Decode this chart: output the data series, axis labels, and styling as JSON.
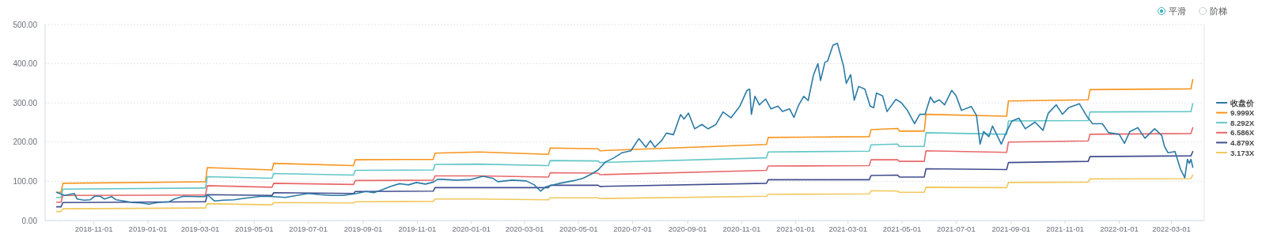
{
  "chart_data": {
    "type": "line",
    "xlim": [
      "2018-09-07",
      "2022-04-07"
    ],
    "xticks": [
      "2018-11-01",
      "2019-01-01",
      "2019-03-01",
      "2019-05-01",
      "2019-07-01",
      "2019-09-01",
      "2019-11-01",
      "2020-01-01",
      "2020-03-01",
      "2020-05-01",
      "2020-07-01",
      "2020-09-01",
      "2020-11-01",
      "2021-01-01",
      "2021-03-01",
      "2021-05-01",
      "2021-07-01",
      "2021-09-01",
      "2021-11-01",
      "2022-01-01",
      "2022-03-01"
    ],
    "ylim": [
      0,
      500
    ],
    "yticks": [
      {
        "value": 0,
        "label": "0.00"
      },
      {
        "value": 100,
        "label": "100.00"
      },
      {
        "value": 200,
        "label": "200.00"
      },
      {
        "value": 300,
        "label": "300.00"
      },
      {
        "value": 400,
        "label": "400.00"
      },
      {
        "value": 500,
        "label": "500.00"
      }
    ],
    "grid": "y",
    "legend": "right",
    "annotations": [
      "平滑",
      "阶梯"
    ],
    "series": [
      {
        "name": "收盘价",
        "color": "#2b7ba6",
        "x": [
          "2018-09-20",
          "2018-09-29",
          "2018-10-10",
          "2018-10-13",
          "2018-10-21",
          "2018-10-28",
          "2018-11-02",
          "2018-11-08",
          "2018-11-13",
          "2018-11-21",
          "2018-11-26",
          "2018-12-05",
          "2018-12-15",
          "2018-12-24",
          "2019-01-02",
          "2019-01-12",
          "2019-01-25",
          "2019-01-31",
          "2019-02-10",
          "2019-02-26",
          "2019-03-06",
          "2019-03-09",
          "2019-03-17",
          "2019-03-27",
          "2019-04-08",
          "2019-04-24",
          "2019-05-10",
          "2019-05-23",
          "2019-06-05",
          "2019-06-18",
          "2019-07-01",
          "2019-07-14",
          "2019-07-27",
          "2019-08-09",
          "2019-08-22",
          "2019-09-04",
          "2019-09-13",
          "2019-09-23",
          "2019-10-02",
          "2019-10-12",
          "2019-10-22",
          "2019-10-31",
          "2019-11-10",
          "2019-11-19",
          "2019-11-24",
          "2019-11-28",
          "2019-12-14",
          "2019-12-30",
          "2020-01-14",
          "2020-01-25",
          "2020-01-31",
          "2020-02-16",
          "2020-03-03",
          "2020-03-12",
          "2020-03-19",
          "2020-03-25",
          "2020-04-10",
          "2020-04-26",
          "2020-05-06",
          "2020-05-15",
          "2020-05-23",
          "2020-05-31",
          "2020-06-10",
          "2020-06-19",
          "2020-06-29",
          "2020-07-08",
          "2020-07-16",
          "2020-07-21",
          "2020-07-26",
          "2020-08-03",
          "2020-08-08",
          "2020-08-16",
          "2020-08-24",
          "2020-08-28",
          "2020-09-02",
          "2020-09-09",
          "2020-09-17",
          "2020-09-24",
          "2020-10-03",
          "2020-10-11",
          "2020-10-20",
          "2020-10-30",
          "2020-11-07",
          "2020-11-10",
          "2020-11-12",
          "2020-11-16",
          "2020-11-21",
          "2020-11-28",
          "2020-12-04",
          "2020-12-12",
          "2020-12-17",
          "2020-12-25",
          "2020-12-30",
          "2021-01-04",
          "2021-01-10",
          "2021-01-15",
          "2021-01-21",
          "2021-01-26",
          "2021-01-29",
          "2021-02-03",
          "2021-02-06",
          "2021-02-12",
          "2021-02-17",
          "2021-02-24",
          "2021-02-27",
          "2021-03-04",
          "2021-03-08",
          "2021-03-13",
          "2021-03-20",
          "2021-03-26",
          "2021-03-30",
          "2021-04-02",
          "2021-04-09",
          "2021-04-14",
          "2021-04-24",
          "2021-04-30",
          "2021-05-07",
          "2021-05-15",
          "2021-05-21",
          "2021-05-27",
          "2021-06-02",
          "2021-06-06",
          "2021-06-12",
          "2021-06-18",
          "2021-06-26",
          "2021-07-01",
          "2021-07-07",
          "2021-07-18",
          "2021-07-24",
          "2021-07-28",
          "2021-08-01",
          "2021-08-07",
          "2021-08-11",
          "2021-08-21",
          "2021-08-27",
          "2021-09-02",
          "2021-09-10",
          "2021-09-17",
          "2021-09-28",
          "2021-10-07",
          "2021-10-13",
          "2021-10-22",
          "2021-10-29",
          "2021-11-05",
          "2021-11-17",
          "2021-11-26",
          "2021-12-02",
          "2021-12-13",
          "2021-12-20",
          "2022-01-01",
          "2022-01-07",
          "2022-01-13",
          "2022-01-22",
          "2022-01-30",
          "2022-02-10",
          "2022-02-18",
          "2022-02-21",
          "2022-02-25",
          "2022-03-05",
          "2022-03-11",
          "2022-03-16",
          "2022-03-19",
          "2022-03-21",
          "2022-03-23",
          "2022-03-25"
        ],
        "values": [
          72,
          64,
          69,
          55,
          52,
          53,
          62,
          62,
          55,
          61,
          53,
          50,
          46,
          45,
          42,
          46,
          48,
          55,
          62,
          61,
          61,
          66,
          50,
          52,
          53,
          58,
          62,
          61,
          59,
          64,
          69,
          66,
          64,
          64,
          68,
          74,
          71,
          79,
          87,
          94,
          91,
          97,
          93,
          98,
          105,
          105,
          103,
          104,
          113,
          108,
          99,
          103,
          101,
          91,
          75,
          86,
          95,
          102,
          108,
          118,
          129,
          149,
          160,
          173,
          178,
          209,
          187,
          204,
          187,
          205,
          223,
          219,
          270,
          259,
          274,
          234,
          245,
          234,
          245,
          277,
          262,
          292,
          332,
          335,
          271,
          317,
          295,
          310,
          285,
          292,
          278,
          285,
          263,
          293,
          317,
          306,
          371,
          400,
          357,
          404,
          407,
          447,
          452,
          393,
          350,
          372,
          307,
          342,
          335,
          292,
          288,
          325,
          318,
          278,
          309,
          301,
          281,
          247,
          271,
          271,
          315,
          301,
          308,
          295,
          332,
          318,
          281,
          291,
          268,
          195,
          227,
          214,
          241,
          195,
          227,
          254,
          261,
          234,
          251,
          230,
          274,
          295,
          271,
          288,
          298,
          264,
          247,
          247,
          224,
          220,
          197,
          227,
          237,
          210,
          234,
          217,
          190,
          173,
          176,
          132,
          109,
          156,
          146,
          156,
          136
        ]
      },
      {
        "name": "9.999X",
        "color": "#f7941d",
        "values": [
          72,
          72,
          95,
          99,
          135,
          129,
          146,
          140,
          155,
          156,
          172,
          175,
          169,
          185,
          183,
          178,
          194,
          212,
          214,
          232,
          235,
          228,
          228,
          271,
          266,
          305,
          308,
          334,
          336,
          360
        ]
      },
      {
        "name": "8.292X",
        "color": "#62c6c6",
        "values": [
          59,
          59,
          80,
          83,
          112,
          108,
          120,
          116,
          128,
          129,
          143,
          144,
          140,
          153,
          152,
          148,
          160,
          175,
          177,
          193,
          195,
          189,
          189,
          224,
          220,
          254,
          255,
          277,
          278,
          298
        ]
      },
      {
        "name": "6.586X",
        "color": "#e8686a",
        "values": [
          47,
          47,
          64,
          65,
          89,
          85,
          95,
          92,
          102,
          103,
          114,
          114,
          111,
          122,
          121,
          117,
          128,
          139,
          140,
          155,
          155,
          151,
          151,
          178,
          174,
          200,
          203,
          220,
          222,
          237
        ]
      },
      {
        "name": "4.879X",
        "color": "#414d8e",
        "values": [
          35,
          35,
          46,
          48,
          66,
          64,
          71,
          69,
          74,
          75,
          84,
          84,
          84,
          90,
          90,
          87,
          95,
          104,
          104,
          115,
          116,
          111,
          111,
          132,
          130,
          148,
          151,
          163,
          165,
          176
        ]
      },
      {
        "name": "3.173X",
        "color": "#f0c85c",
        "values": [
          23,
          23,
          30,
          32,
          43,
          40,
          46,
          45,
          48,
          49,
          55,
          55,
          53,
          58,
          58,
          56,
          62,
          67,
          68,
          76,
          75,
          72,
          72,
          85,
          84,
          97,
          98,
          106,
          107,
          116
        ]
      }
    ],
    "x": [
      "2018-09-20",
      "2018-09-25",
      "2018-09-27",
      "2019-03-07",
      "2019-03-09",
      "2019-05-21",
      "2019-05-23",
      "2019-08-21",
      "2019-08-23",
      "2019-11-19",
      "2019-11-21",
      "2020-01-10",
      "2020-03-28",
      "2020-03-30",
      "2020-05-23",
      "2020-05-25",
      "2020-11-29",
      "2020-12-01",
      "2021-03-25",
      "2021-03-27",
      "2021-04-26",
      "2021-04-28",
      "2021-05-26",
      "2021-05-28",
      "2021-08-27",
      "2021-08-29",
      "2021-11-27",
      "2021-11-29",
      "2022-03-23",
      "2022-03-25"
    ]
  }
}
